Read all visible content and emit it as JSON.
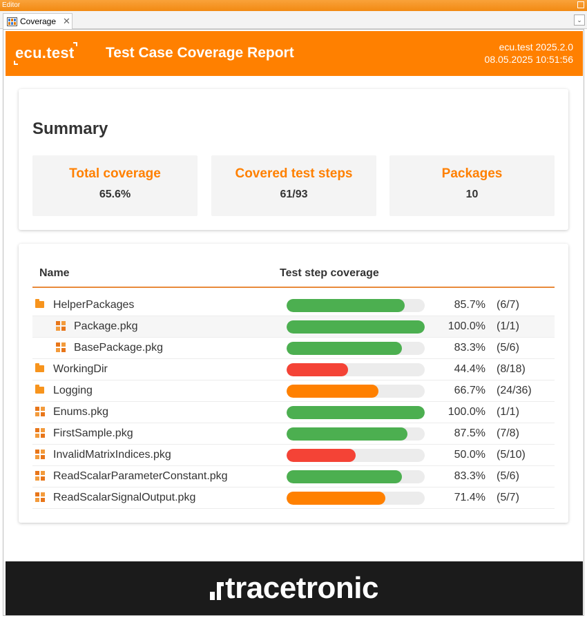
{
  "editor": {
    "title": "Editor"
  },
  "tab": {
    "label": "Coverage",
    "close": "✕",
    "menu": "⌄"
  },
  "header": {
    "logo": "ecu.test",
    "title": "Test Case Coverage Report",
    "version": "ecu.test 2025.2.0",
    "timestamp": "08.05.2025 10:51:56"
  },
  "summary": {
    "title": "Summary",
    "stats": [
      {
        "label": "Total coverage",
        "value": "65.6%"
      },
      {
        "label": "Covered test steps",
        "value": "61/93"
      },
      {
        "label": "Packages",
        "value": "10"
      }
    ]
  },
  "table": {
    "col_name": "Name",
    "col_coverage": "Test step coverage",
    "rows": [
      {
        "name": "HelperPackages",
        "type": "folder",
        "indent": 0,
        "percent": "85.7%",
        "count": "(6/7)",
        "fraction": 0.857,
        "color": "#4caf50"
      },
      {
        "name": "Package.pkg",
        "type": "package",
        "indent": 1,
        "percent": "100.0%",
        "count": "(1/1)",
        "fraction": 1.0,
        "color": "#4caf50"
      },
      {
        "name": "BasePackage.pkg",
        "type": "package",
        "indent": 1,
        "percent": "83.3%",
        "count": "(5/6)",
        "fraction": 0.833,
        "color": "#4caf50"
      },
      {
        "name": "WorkingDir",
        "type": "folder",
        "indent": 0,
        "percent": "44.4%",
        "count": "(8/18)",
        "fraction": 0.444,
        "color": "#f44336"
      },
      {
        "name": "Logging",
        "type": "folder",
        "indent": 0,
        "percent": "66.7%",
        "count": "(24/36)",
        "fraction": 0.667,
        "color": "#ff8000"
      },
      {
        "name": "Enums.pkg",
        "type": "package",
        "indent": 0,
        "percent": "100.0%",
        "count": "(1/1)",
        "fraction": 1.0,
        "color": "#4caf50"
      },
      {
        "name": "FirstSample.pkg",
        "type": "package",
        "indent": 0,
        "percent": "87.5%",
        "count": "(7/8)",
        "fraction": 0.875,
        "color": "#4caf50"
      },
      {
        "name": "InvalidMatrixIndices.pkg",
        "type": "package",
        "indent": 0,
        "percent": "50.0%",
        "count": "(5/10)",
        "fraction": 0.5,
        "color": "#f44336"
      },
      {
        "name": "ReadScalarParameterConstant.pkg",
        "type": "package",
        "indent": 0,
        "percent": "83.3%",
        "count": "(5/6)",
        "fraction": 0.833,
        "color": "#4caf50"
      },
      {
        "name": "ReadScalarSignalOutput.pkg",
        "type": "package",
        "indent": 0,
        "percent": "71.4%",
        "count": "(5/7)",
        "fraction": 0.714,
        "color": "#ff8000"
      }
    ]
  },
  "footer": {
    "logo": "tracetronic"
  }
}
